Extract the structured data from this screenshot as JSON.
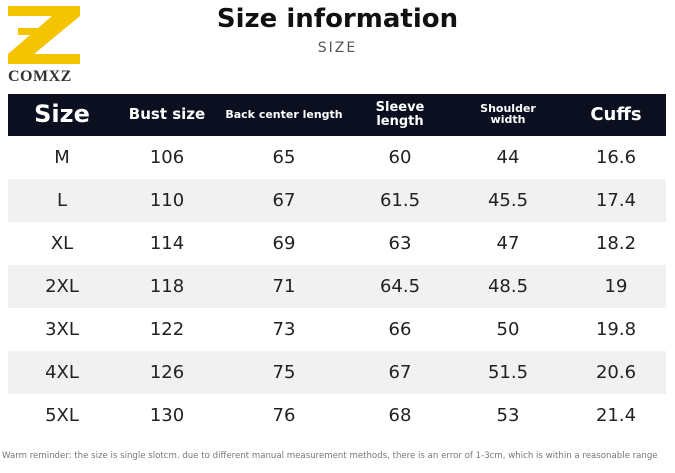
{
  "logo": {
    "text": "COMXZ"
  },
  "header": {
    "title": "Size information",
    "subtitle": "SIZE"
  },
  "table": {
    "columns": [
      "Size",
      "Bust size",
      "Back center length",
      "Sleeve length",
      "Shoulder width",
      "Cuffs"
    ],
    "rows": [
      [
        "M",
        106,
        65,
        60,
        44,
        16.6
      ],
      [
        "L",
        110,
        67,
        61.5,
        45.5,
        17.4
      ],
      [
        "XL",
        114,
        69,
        63,
        47,
        18.2
      ],
      [
        "2XL",
        118,
        71,
        64.5,
        48.5,
        19
      ],
      [
        "3XL",
        122,
        73,
        66,
        50,
        19.8
      ],
      [
        "4XL",
        126,
        75,
        67,
        51.5,
        20.6
      ],
      [
        "5XL",
        130,
        76,
        68,
        53,
        21.4
      ]
    ]
  },
  "footer": {
    "note": "Warm reminder: the size is single slotcm. due to different manual measurement methods, there is an error of 1-3cm, which is within a reasonable range"
  }
}
